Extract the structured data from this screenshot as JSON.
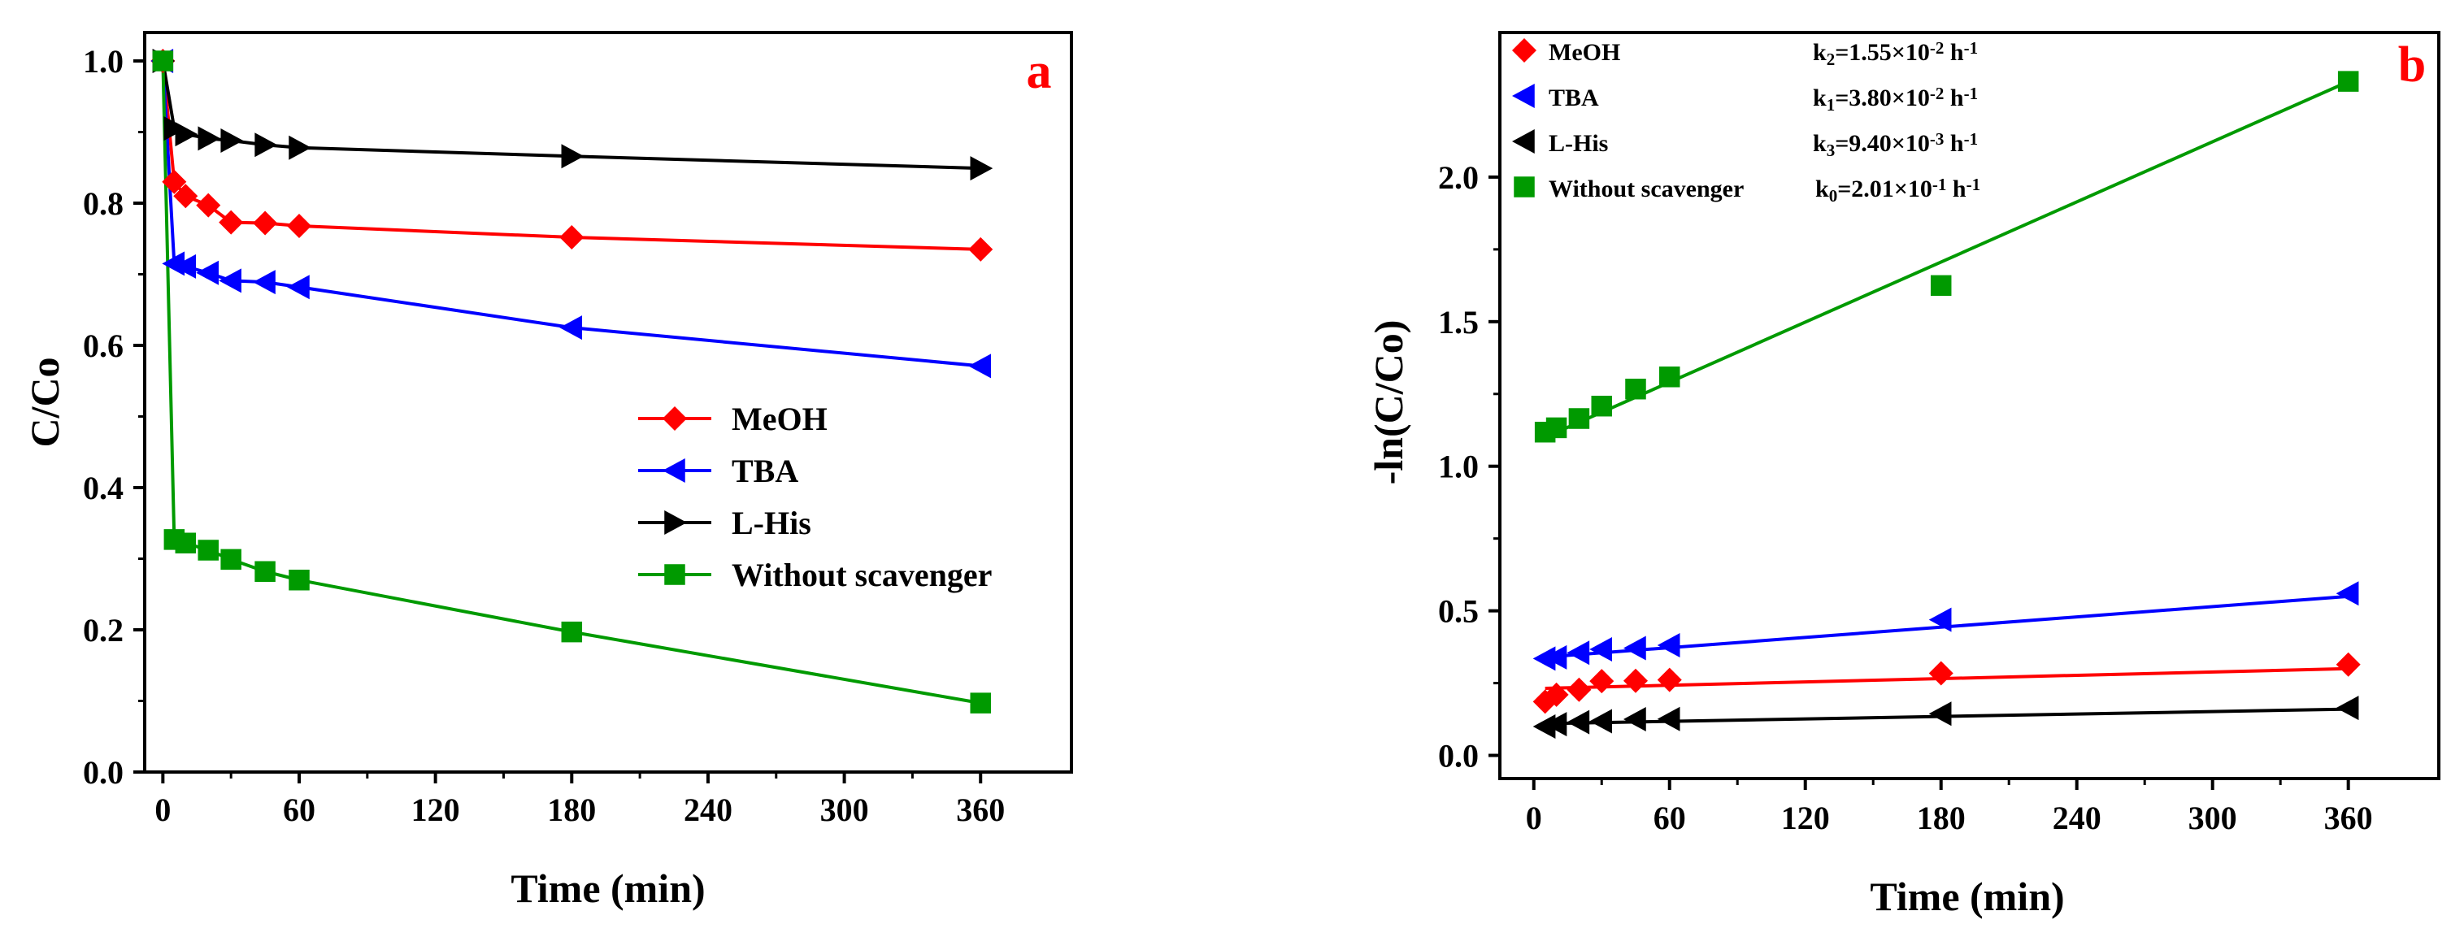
{
  "colors": {
    "MeOH": "#ff0000",
    "TBA": "#0000ff",
    "L-His": "#000000",
    "Without scavenger": "#009a00",
    "panel_letter": "#ff0000"
  },
  "chart_data": [
    {
      "type": "line",
      "panel": "a",
      "title": "",
      "xlabel": "Time (min)",
      "ylabel": "C/Co",
      "xlim": [
        -8,
        400
      ],
      "ylim": [
        0,
        1.04
      ],
      "xticks": [
        0,
        60,
        120,
        180,
        240,
        300,
        360
      ],
      "xtick_labels": [
        "0",
        "60",
        "120",
        "180",
        "240",
        "300",
        "360"
      ],
      "yticks": [
        0,
        0.2,
        0.4,
        0.6,
        0.8,
        1.0
      ],
      "ytick_labels": [
        "0.0",
        "0.2",
        "0.4",
        "0.6",
        "0.8",
        "1.0"
      ],
      "legend_position": "center-right",
      "series": [
        {
          "name": "MeOH",
          "marker": "diamond",
          "x": [
            0,
            5,
            10,
            20,
            30,
            45,
            60,
            180,
            360
          ],
          "y": [
            1.0,
            0.83,
            0.81,
            0.797,
            0.773,
            0.772,
            0.768,
            0.752,
            0.735
          ]
        },
        {
          "name": "TBA",
          "marker": "triangle-left",
          "x": [
            0,
            5,
            10,
            20,
            30,
            45,
            60,
            180,
            360
          ],
          "y": [
            1.0,
            0.715,
            0.711,
            0.702,
            0.691,
            0.689,
            0.682,
            0.625,
            0.571
          ]
        },
        {
          "name": "L-His",
          "marker": "triangle-right",
          "x": [
            0,
            5,
            10,
            20,
            30,
            45,
            60,
            180,
            360
          ],
          "y": [
            1.0,
            0.905,
            0.897,
            0.891,
            0.888,
            0.882,
            0.878,
            0.866,
            0.849
          ]
        },
        {
          "name": "Without scavenger",
          "marker": "square",
          "x": [
            0,
            5,
            10,
            20,
            30,
            45,
            60,
            180,
            360
          ],
          "y": [
            1.0,
            0.327,
            0.322,
            0.312,
            0.299,
            0.282,
            0.27,
            0.197,
            0.097
          ]
        }
      ]
    },
    {
      "type": "scatter",
      "panel": "b",
      "title": "",
      "xlabel": "Time (min)",
      "ylabel": "-ln(C/Co)",
      "xlim": [
        -15,
        400
      ],
      "ylim": [
        -0.08,
        2.5
      ],
      "xticks": [
        0,
        60,
        120,
        180,
        240,
        300,
        360
      ],
      "xtick_labels": [
        "0",
        "60",
        "120",
        "180",
        "240",
        "300",
        "360"
      ],
      "yticks": [
        0,
        0.5,
        1.0,
        1.5,
        2.0
      ],
      "ytick_labels": [
        "0.0",
        "0.5",
        "1.0",
        "1.5",
        "2.0"
      ],
      "legend_position": "top-left",
      "series": [
        {
          "name": "MeOH",
          "marker": "diamond",
          "annotation": [
            "k",
            "2",
            "=1.55×10",
            "-2",
            " h",
            "-1"
          ],
          "x": [
            5,
            10,
            20,
            30,
            45,
            60,
            180,
            360
          ],
          "y": [
            0.186,
            0.21,
            0.227,
            0.257,
            0.258,
            0.261,
            0.284,
            0.314
          ],
          "fit": {
            "x": [
              5,
              360
            ],
            "y": [
              0.232,
              0.3
            ]
          }
        },
        {
          "name": "TBA",
          "marker": "triangle-left",
          "annotation": [
            "k",
            "1",
            "=3.80×10",
            "-2",
            " h",
            "-1"
          ],
          "x": [
            5,
            10,
            20,
            30,
            45,
            60,
            180,
            360
          ],
          "y": [
            0.335,
            0.339,
            0.355,
            0.367,
            0.371,
            0.381,
            0.469,
            0.56
          ],
          "fit": {
            "x": [
              5,
              360
            ],
            "y": [
              0.34,
              0.55
            ]
          }
        },
        {
          "name": "L-His",
          "marker": "triangle-left",
          "annotation": [
            "k",
            "3",
            "=9.40×10",
            "-3",
            " h",
            "-1"
          ],
          "x": [
            5,
            10,
            20,
            30,
            45,
            60,
            180,
            360
          ],
          "y": [
            0.1,
            0.108,
            0.115,
            0.118,
            0.125,
            0.126,
            0.144,
            0.164
          ],
          "fit": {
            "x": [
              5,
              360
            ],
            "y": [
              0.11,
              0.16
            ]
          }
        },
        {
          "name": "Without scavenger",
          "marker": "square",
          "annotation": [
            "k",
            "0",
            "=2.01×10",
            "-1",
            " h",
            "-1"
          ],
          "x": [
            5,
            10,
            20,
            30,
            45,
            60,
            180,
            360
          ],
          "y": [
            1.118,
            1.133,
            1.165,
            1.208,
            1.267,
            1.309,
            1.625,
            2.331
          ],
          "fit": {
            "x": [
              5,
              360
            ],
            "y": [
              1.1,
              2.33
            ]
          }
        }
      ]
    }
  ]
}
